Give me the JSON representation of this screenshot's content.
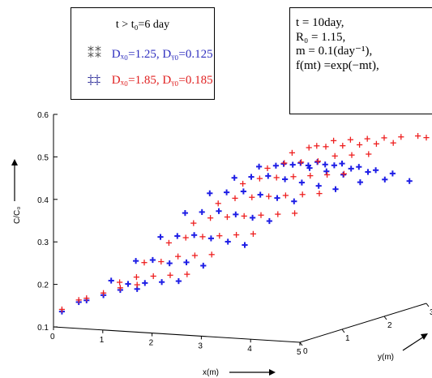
{
  "legend": {
    "title": "t > t₀=6 day",
    "series1_glyph": "⁑⁑",
    "series1_text": "Dₓ₀=1.25, Dᵧ₀=0.125",
    "series2_glyph": "‡‡",
    "series2_text": "Dₓ₀=1.85, Dᵧ₀=0.185"
  },
  "params": {
    "line1": "t = 10day,",
    "line2": "R₀ = 1.15,",
    "line3": "m = 0.1(day⁻¹),",
    "line4": "f(mt) =exp(−mt),"
  },
  "colors": {
    "series1": "#1f1fe6",
    "series2": "#ee2020",
    "axis": "#000000"
  },
  "chart_data": {
    "type": "scatter",
    "zlabel": "C/C₀",
    "xlabel": "x(m)",
    "ylabel": "y(m)",
    "z_ticks": [
      "0.1",
      "0.2",
      "0.3",
      "0.4",
      "0.5",
      "0.6"
    ],
    "x_ticks": [
      "0",
      "1",
      "2",
      "3",
      "4",
      "5"
    ],
    "y_ticks": [
      "0",
      "1",
      "2",
      "3"
    ],
    "zlim": [
      0.1,
      0.6
    ],
    "xlim": [
      0,
      5
    ],
    "ylim": [
      0,
      3
    ],
    "grid": false,
    "series": [
      {
        "color": "#1f1fe6",
        "marker": "+",
        "points": [
          [
            0,
            0.2,
            0.13
          ],
          [
            0,
            0.6,
            0.14
          ],
          [
            0.5,
            0.2,
            0.16
          ],
          [
            0.5,
            0.6,
            0.16
          ],
          [
            0.5,
            1.0,
            0.16
          ],
          [
            0.5,
            1.4,
            0.15
          ],
          [
            1.0,
            0.2,
            0.21
          ],
          [
            1.0,
            0.6,
            0.19
          ],
          [
            1.0,
            1.0,
            0.18
          ],
          [
            1.0,
            1.4,
            0.17
          ],
          [
            1.0,
            1.8,
            0.16
          ],
          [
            1.5,
            0.2,
            0.26
          ],
          [
            1.5,
            0.6,
            0.25
          ],
          [
            1.5,
            1.0,
            0.23
          ],
          [
            1.5,
            1.4,
            0.22
          ],
          [
            1.5,
            1.8,
            0.2
          ],
          [
            2.0,
            0.2,
            0.32
          ],
          [
            2.0,
            0.6,
            0.31
          ],
          [
            2.0,
            1.0,
            0.3
          ],
          [
            2.0,
            1.4,
            0.28
          ],
          [
            2.0,
            1.8,
            0.26
          ],
          [
            2.0,
            2.2,
            0.24
          ],
          [
            2.5,
            0.2,
            0.38
          ],
          [
            2.5,
            0.6,
            0.37
          ],
          [
            2.5,
            1.0,
            0.36
          ],
          [
            2.5,
            1.4,
            0.34
          ],
          [
            2.5,
            1.8,
            0.32
          ],
          [
            2.5,
            2.2,
            0.3
          ],
          [
            3.0,
            0.2,
            0.43
          ],
          [
            3.0,
            0.6,
            0.42
          ],
          [
            3.0,
            1.0,
            0.41
          ],
          [
            3.0,
            1.4,
            0.39
          ],
          [
            3.0,
            1.8,
            0.37
          ],
          [
            3.0,
            2.2,
            0.35
          ],
          [
            3.5,
            0.2,
            0.47
          ],
          [
            3.5,
            0.6,
            0.46
          ],
          [
            3.5,
            1.0,
            0.45
          ],
          [
            3.5,
            1.4,
            0.43
          ],
          [
            3.5,
            1.8,
            0.41
          ],
          [
            3.5,
            2.2,
            0.39
          ],
          [
            3.5,
            2.6,
            0.37
          ],
          [
            4.0,
            0.2,
            0.5
          ],
          [
            4.0,
            0.6,
            0.49
          ],
          [
            4.0,
            1.0,
            0.48
          ],
          [
            4.0,
            1.4,
            0.46
          ],
          [
            4.0,
            1.8,
            0.44
          ],
          [
            4.0,
            2.2,
            0.42
          ],
          [
            4.0,
            2.6,
            0.39
          ],
          [
            4.5,
            0.2,
            0.51
          ],
          [
            4.5,
            0.6,
            0.5
          ],
          [
            4.5,
            1.0,
            0.49
          ],
          [
            4.5,
            1.4,
            0.47
          ],
          [
            4.5,
            1.8,
            0.45
          ],
          [
            4.5,
            2.2,
            0.43
          ],
          [
            4.5,
            2.6,
            0.4
          ],
          [
            5.0,
            0.2,
            0.51
          ],
          [
            5.0,
            0.6,
            0.5
          ],
          [
            5.0,
            1.0,
            0.49
          ],
          [
            5.0,
            1.4,
            0.47
          ],
          [
            5.0,
            1.8,
            0.45
          ],
          [
            5.0,
            2.2,
            0.43
          ],
          [
            5.0,
            2.6,
            0.4
          ]
        ]
      },
      {
        "color": "#ee2020",
        "marker": "+",
        "points": [
          [
            0,
            0.2,
            0.135
          ],
          [
            0,
            0.6,
            0.145
          ],
          [
            0.5,
            0.2,
            0.165
          ],
          [
            0.5,
            0.6,
            0.165
          ],
          [
            0.5,
            1.0,
            0.165
          ],
          [
            0.5,
            1.4,
            0.16
          ],
          [
            1.0,
            0.4,
            0.2
          ],
          [
            1.0,
            0.8,
            0.2
          ],
          [
            1.0,
            1.2,
            0.19
          ],
          [
            1.0,
            1.6,
            0.18
          ],
          [
            1.0,
            2.0,
            0.17
          ],
          [
            1.5,
            0.4,
            0.25
          ],
          [
            1.5,
            0.8,
            0.24
          ],
          [
            1.5,
            1.2,
            0.24
          ],
          [
            1.5,
            1.6,
            0.23
          ],
          [
            1.5,
            2.0,
            0.22
          ],
          [
            2.0,
            0.4,
            0.3
          ],
          [
            2.0,
            0.8,
            0.3
          ],
          [
            2.0,
            1.2,
            0.29
          ],
          [
            2.0,
            1.6,
            0.28
          ],
          [
            2.0,
            2.0,
            0.27
          ],
          [
            2.0,
            2.4,
            0.26
          ],
          [
            2.5,
            0.4,
            0.35
          ],
          [
            2.5,
            0.8,
            0.35
          ],
          [
            2.5,
            1.2,
            0.34
          ],
          [
            2.5,
            1.6,
            0.33
          ],
          [
            2.5,
            2.0,
            0.32
          ],
          [
            2.5,
            2.4,
            0.31
          ],
          [
            2.5,
            2.8,
            0.3
          ],
          [
            3.0,
            0.4,
            0.4
          ],
          [
            3.0,
            0.8,
            0.4
          ],
          [
            3.0,
            1.2,
            0.39
          ],
          [
            3.0,
            1.6,
            0.38
          ],
          [
            3.0,
            2.0,
            0.37
          ],
          [
            3.0,
            2.4,
            0.36
          ],
          [
            3.0,
            2.8,
            0.35
          ],
          [
            3.5,
            0.4,
            0.45
          ],
          [
            3.5,
            0.8,
            0.45
          ],
          [
            3.5,
            1.2,
            0.44
          ],
          [
            3.5,
            1.6,
            0.43
          ],
          [
            3.5,
            2.0,
            0.42
          ],
          [
            3.5,
            2.4,
            0.41
          ],
          [
            3.5,
            2.8,
            0.4
          ],
          [
            4.0,
            0.4,
            0.49
          ],
          [
            4.0,
            0.8,
            0.49
          ],
          [
            4.0,
            1.2,
            0.48
          ],
          [
            4.0,
            1.6,
            0.47
          ],
          [
            4.0,
            2.0,
            0.47
          ],
          [
            4.0,
            2.4,
            0.46
          ],
          [
            4.0,
            2.8,
            0.45
          ],
          [
            4.5,
            0.4,
            0.53
          ],
          [
            4.5,
            0.8,
            0.53
          ],
          [
            4.5,
            1.2,
            0.52
          ],
          [
            4.5,
            1.6,
            0.51
          ],
          [
            4.5,
            2.0,
            0.5
          ],
          [
            4.5,
            2.4,
            0.49
          ],
          [
            4.5,
            2.8,
            0.48
          ],
          [
            5.0,
            0.4,
            0.55
          ],
          [
            5.0,
            0.8,
            0.55
          ],
          [
            5.0,
            1.2,
            0.54
          ],
          [
            5.0,
            1.6,
            0.53
          ],
          [
            5.0,
            2.0,
            0.52
          ],
          [
            5.0,
            2.4,
            0.51
          ],
          [
            5.0,
            2.8,
            0.5
          ],
          [
            5.0,
            3.0,
            0.49
          ]
        ]
      }
    ]
  }
}
